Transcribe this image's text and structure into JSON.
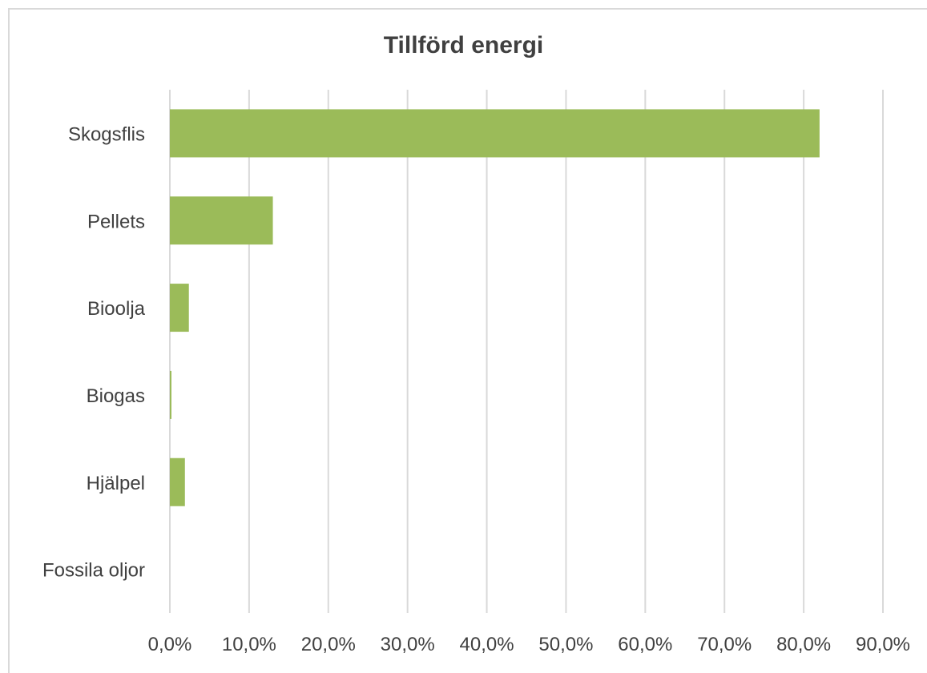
{
  "chart_data": {
    "type": "bar",
    "orientation": "horizontal",
    "title": "Tillförd energi",
    "xlabel": "",
    "ylabel": "",
    "categories": [
      "Skogsflis",
      "Pellets",
      "Bioolja",
      "Biogas",
      "Hjälpel",
      "Fossila oljor"
    ],
    "values": [
      82.0,
      13.0,
      2.4,
      0.2,
      1.9,
      0.0
    ],
    "xlim": [
      0,
      90
    ],
    "x_ticks": [
      0,
      10,
      20,
      30,
      40,
      50,
      60,
      70,
      80,
      90
    ],
    "x_tick_labels": [
      "0,0%",
      "10,0%",
      "20,0%",
      "30,0%",
      "40,0%",
      "50,0%",
      "60,0%",
      "70,0%",
      "80,0%",
      "90,0%"
    ],
    "grid": "vertical",
    "legend": "none",
    "colors": {
      "bar": "#9bbb59",
      "grid": "#d9d9d9",
      "text": "#404040"
    }
  }
}
